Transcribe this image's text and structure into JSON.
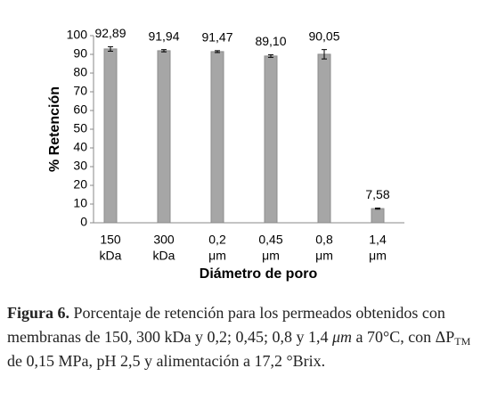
{
  "chart_data": {
    "type": "bar",
    "ylabel": "% Retención",
    "xlabel": "Diámetro de poro",
    "categories": [
      [
        "150",
        "kDa"
      ],
      [
        "300",
        "kDa"
      ],
      [
        "0,2",
        "μm"
      ],
      [
        "0,45",
        "μm"
      ],
      [
        "0,8",
        "μm"
      ],
      [
        "1,4",
        "μm"
      ]
    ],
    "values": [
      92.89,
      91.94,
      91.47,
      89.1,
      90.05,
      7.58
    ],
    "value_labels": [
      "92,89",
      "91,94",
      "91,47",
      "89,10",
      "90,05",
      "7,58"
    ],
    "errors": [
      1.2,
      0.6,
      0.5,
      0.7,
      2.5,
      0.3
    ],
    "color": "#a6a6a6",
    "ylim": [
      0,
      100
    ],
    "yticks": [
      0,
      10,
      20,
      30,
      40,
      50,
      60,
      70,
      80,
      90,
      100
    ]
  },
  "caption": {
    "label": "Figura 6.",
    "parts": [
      "Porcentaje de retención para los permeados obtenidos con membranas de 150, 300 kDa y 0,2; 0,45; 0,8 y 1,4 ",
      "μm",
      " a 70°C, con ΔP",
      "TM",
      " de 0,15 MPa, pH 2,5 y alimentación a 17,2 °Brix."
    ]
  }
}
